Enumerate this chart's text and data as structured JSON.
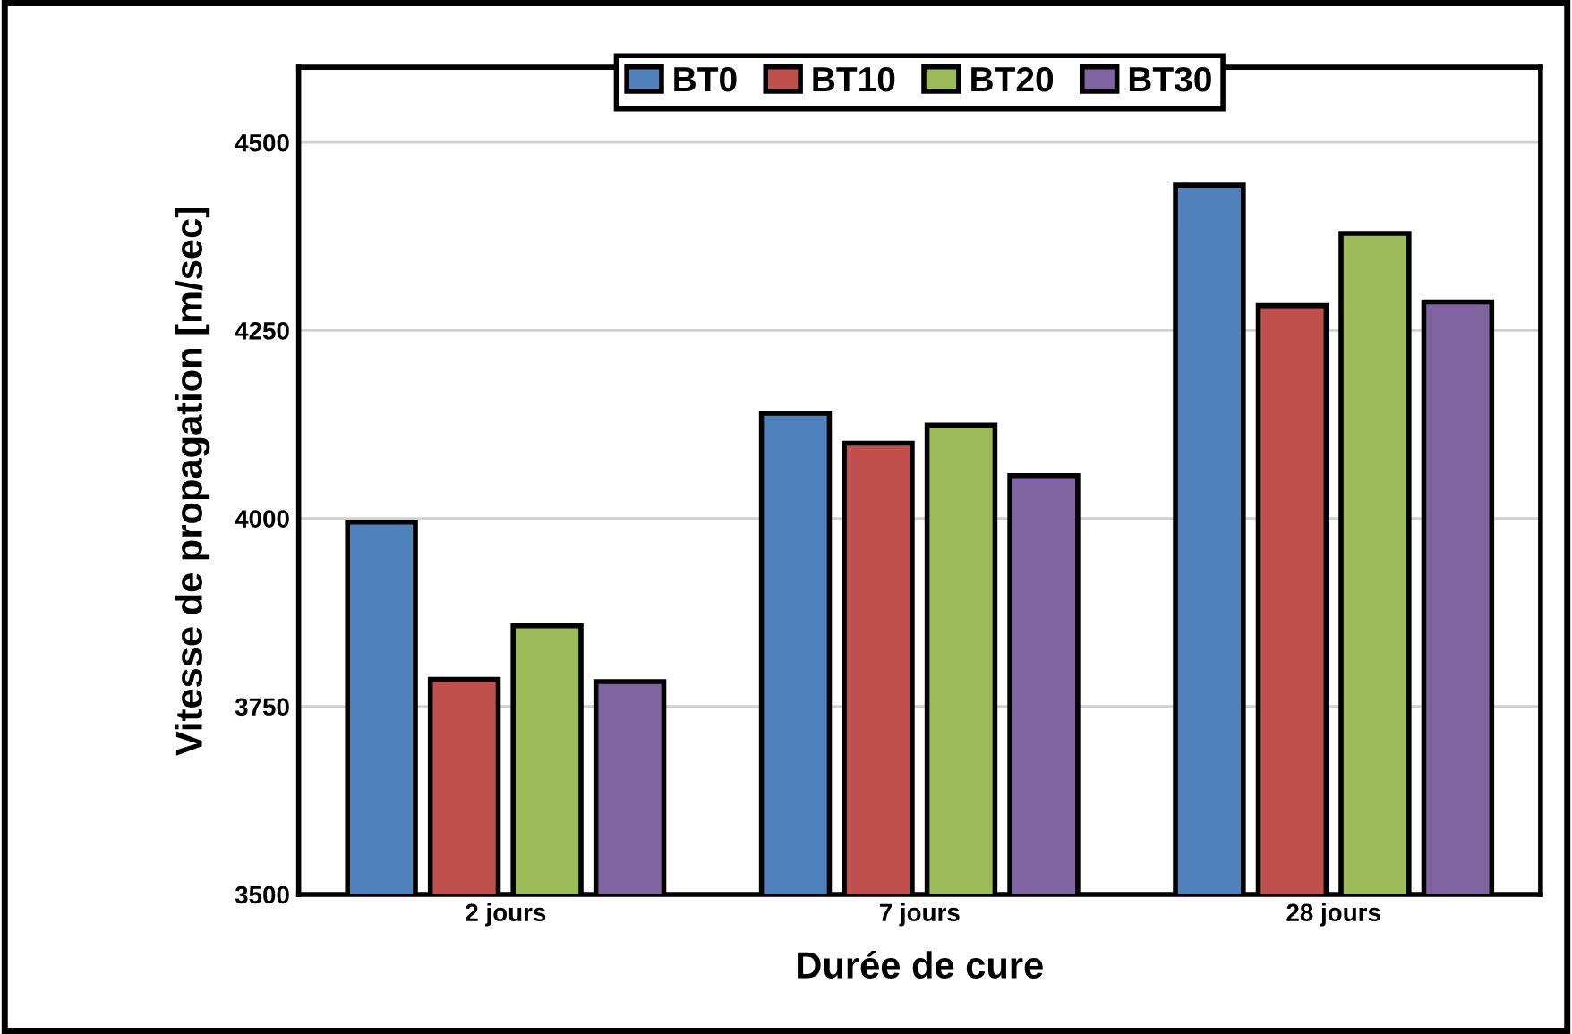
{
  "chart_data": {
    "type": "bar",
    "xlabel": "Durée de cure",
    "ylabel": "Vitesse de propagation [m/sec]",
    "categories": [
      "2 jours",
      "7 jours",
      "28 jours"
    ],
    "series": [
      {
        "name": "BT0",
        "color": "#4f81bd",
        "values": [
          3995,
          4140,
          4443
        ]
      },
      {
        "name": "BT10",
        "color": "#c0504d",
        "values": [
          3786,
          4100,
          4283
        ]
      },
      {
        "name": "BT20",
        "color": "#9bbb59",
        "values": [
          3857,
          4124,
          4379
        ]
      },
      {
        "name": "BT30",
        "color": "#8064a2",
        "values": [
          3783,
          4057,
          4288
        ]
      }
    ],
    "ylim": [
      3500,
      4600
    ],
    "yticks": [
      3500,
      3750,
      4000,
      4250,
      4500
    ],
    "grid": "y",
    "legend": "top"
  }
}
